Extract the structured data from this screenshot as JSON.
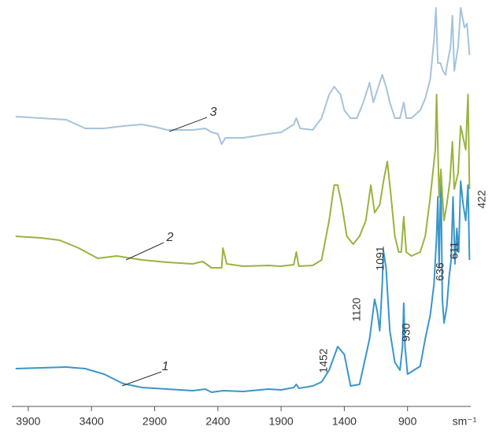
{
  "chart_data": {
    "type": "line",
    "x_label": "sm⁻¹",
    "xlim": [
      4030,
      400
    ],
    "xticks": [
      3900,
      3400,
      2900,
      2400,
      1900,
      1400,
      900
    ],
    "ylim": [
      0,
      520
    ],
    "series": [
      {
        "name": "1",
        "color": "#3a96c9",
        "x": [
          4000,
          3800,
          3600,
          3450,
          3300,
          3150,
          3000,
          2800,
          2600,
          2500,
          2450,
          2360,
          2200,
          2000,
          1900,
          1800,
          1780,
          1760,
          1650,
          1580,
          1520,
          1452,
          1400,
          1350,
          1280,
          1200,
          1160,
          1140,
          1120,
          1100,
          1091,
          1070,
          1040,
          1000,
          960,
          940,
          930,
          920,
          900,
          850,
          800,
          760,
          720,
          690,
          670,
          660,
          650,
          636,
          625,
          611,
          590,
          570,
          555,
          540,
          525,
          510,
          495,
          480,
          460,
          440,
          422,
          410
        ],
        "values": [
          52,
          53,
          54,
          52,
          45,
          33,
          28,
          26,
          24,
          26,
          22,
          24,
          23,
          26,
          25,
          28,
          32,
          27,
          30,
          35,
          50,
          80,
          70,
          30,
          32,
          90,
          140,
          125,
          100,
          160,
          202,
          180,
          100,
          60,
          50,
          80,
          135,
          80,
          45,
          50,
          55,
          90,
          120,
          160,
          220,
          270,
          180,
          300,
          140,
          110,
          130,
          170,
          190,
          270,
          185,
          230,
          200,
          290,
          260,
          240,
          285,
          190
        ]
      },
      {
        "name": "2",
        "color": "#9ab33f",
        "x": [
          4000,
          3800,
          3650,
          3500,
          3350,
          3200,
          3000,
          2800,
          2600,
          2520,
          2450,
          2370,
          2360,
          2330,
          2200,
          2000,
          1900,
          1800,
          1780,
          1760,
          1650,
          1580,
          1520,
          1480,
          1452,
          1420,
          1380,
          1330,
          1280,
          1230,
          1190,
          1160,
          1120,
          1090,
          1060,
          1030,
          1000,
          970,
          950,
          930,
          910,
          870,
          800,
          760,
          720,
          680,
          670,
          650,
          636,
          620,
          611,
          590,
          565,
          545,
          530,
          500,
          480,
          440,
          422,
          410
        ],
        "values": [
          220,
          218,
          215,
          205,
          192,
          195,
          190,
          187,
          185,
          188,
          180,
          180,
          205,
          185,
          182,
          183,
          182,
          184,
          200,
          182,
          183,
          190,
          240,
          285,
          285,
          260,
          220,
          210,
          220,
          240,
          285,
          250,
          260,
          290,
          315,
          270,
          220,
          200,
          200,
          245,
          200,
          195,
          200,
          220,
          270,
          330,
          400,
          270,
          305,
          260,
          240,
          260,
          290,
          340,
          280,
          300,
          360,
          330,
          400,
          280
        ]
      },
      {
        "name": "3",
        "color": "#a6c3dc",
        "x": [
          4000,
          3800,
          3600,
          3450,
          3300,
          3150,
          3000,
          2900,
          2800,
          2600,
          2500,
          2450,
          2400,
          2370,
          2340,
          2200,
          2000,
          1900,
          1800,
          1780,
          1750,
          1650,
          1580,
          1520,
          1480,
          1430,
          1400,
          1350,
          1300,
          1250,
          1200,
          1170,
          1130,
          1100,
          1070,
          1040,
          1000,
          960,
          930,
          910,
          870,
          800,
          760,
          720,
          690,
          675,
          660,
          640,
          620,
          600,
          585,
          560,
          545,
          530,
          500,
          480,
          450,
          430,
          410
        ],
        "values": [
          372,
          370,
          368,
          357,
          357,
          360,
          362,
          359,
          355,
          355,
          357,
          352,
          350,
          337,
          345,
          345,
          350,
          352,
          362,
          370,
          357,
          355,
          370,
          400,
          410,
          400,
          380,
          370,
          370,
          390,
          415,
          390,
          410,
          425,
          410,
          390,
          370,
          370,
          390,
          370,
          370,
          380,
          395,
          420,
          470,
          510,
          440,
          440,
          430,
          425,
          440,
          460,
          500,
          430,
          460,
          510,
          485,
          490,
          450
        ]
      }
    ],
    "annotations": [
      "1452",
      "1120",
      "1091",
      "930",
      "636",
      "611",
      "422"
    ]
  }
}
